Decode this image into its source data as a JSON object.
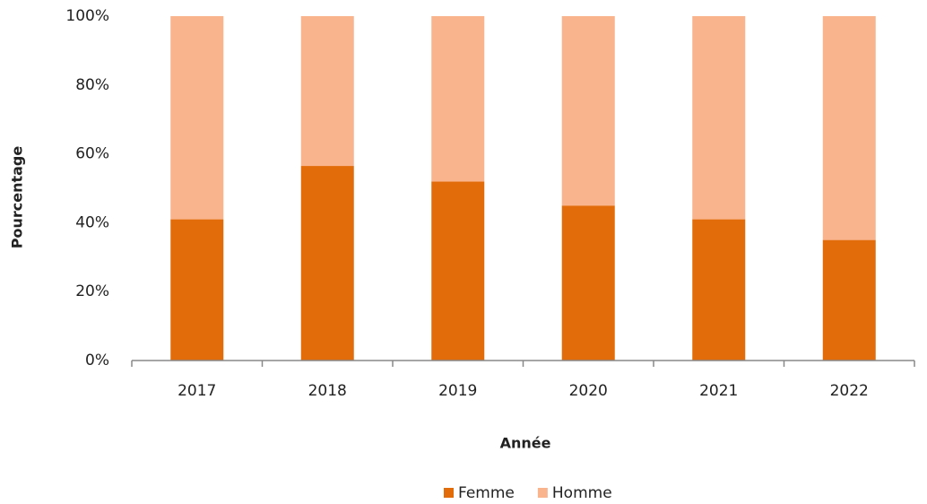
{
  "chart_data": {
    "type": "stacked_bar",
    "x_label": "Année",
    "y_label": "Pourcentage",
    "categories": [
      "2017",
      "2018",
      "2019",
      "2020",
      "2021",
      "2022"
    ],
    "series": [
      {
        "name": "Femme",
        "color": "#e36c0a",
        "values": [
          41,
          56.5,
          52,
          45,
          41,
          35
        ]
      },
      {
        "name": "Homme",
        "color": "#f9b48e",
        "values": [
          59,
          43.5,
          48,
          55,
          59,
          65
        ]
      }
    ],
    "ylim": [
      0,
      100
    ],
    "yticks": [
      {
        "value": 0,
        "label": "0%"
      },
      {
        "value": 20,
        "label": "20%"
      },
      {
        "value": 40,
        "label": "40%"
      },
      {
        "value": 60,
        "label": "60%"
      },
      {
        "value": 80,
        "label": "80%"
      },
      {
        "value": 100,
        "label": "100%"
      }
    ],
    "grid": false,
    "legend": "bottom"
  }
}
